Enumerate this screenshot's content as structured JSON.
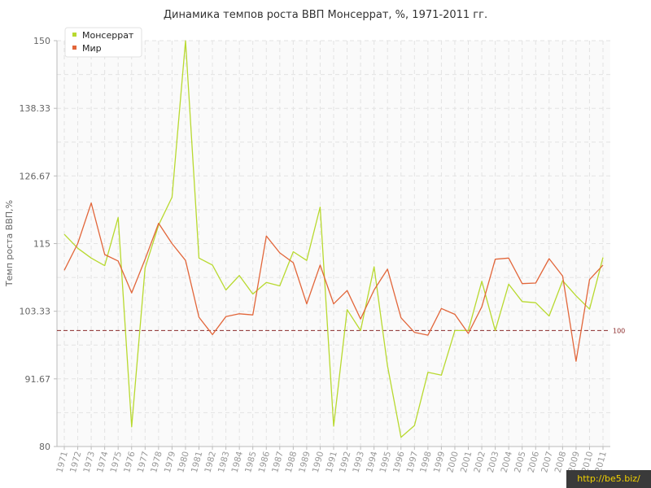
{
  "colors": {
    "monserrat": "#b8d92f",
    "world": "#e2663a",
    "reference": "#8b2a2a",
    "grid": "#e3e3e3",
    "axis": "#bbbbbb"
  },
  "watermark": "http://be5.biz/",
  "chart_data": {
    "type": "line",
    "title": "Динамика темпов роста ВВП Монсеррат, %, 1971-2011 гг.",
    "xlabel": "",
    "ylabel": "Темп роста ВВП,%",
    "ylim": [
      80,
      150
    ],
    "yticks": [
      "80",
      "91.67",
      "103.33",
      "115",
      "126.67",
      "138.33",
      "150"
    ],
    "ytick_values": [
      80,
      91.67,
      103.33,
      115,
      126.67,
      138.33,
      150
    ],
    "x": [
      "1971",
      "1972",
      "1973",
      "1974",
      "1975",
      "1976",
      "1977",
      "1978",
      "1979",
      "1980",
      "1981",
      "1982",
      "1983",
      "1984",
      "1985",
      "1986",
      "1987",
      "1988",
      "1989",
      "1990",
      "1991",
      "1992",
      "1993",
      "1994",
      "1995",
      "1996",
      "1997",
      "1998",
      "1999",
      "2000",
      "2001",
      "2002",
      "2003",
      "2004",
      "2005",
      "2006",
      "2007",
      "2008",
      "2009",
      "2010",
      "2011"
    ],
    "grid": true,
    "legend_position": "top-left",
    "reference_line": {
      "value": 100,
      "label": "100"
    },
    "series": [
      {
        "name": "Монсеррат",
        "color_key": "monserrat",
        "values": [
          116.6,
          114.2,
          112.5,
          111.2,
          119.5,
          83.4,
          110.8,
          118.2,
          123.0,
          150.0,
          112.5,
          111.3,
          107.0,
          109.5,
          106.3,
          108.3,
          107.7,
          113.6,
          112.1,
          121.3,
          83.5,
          103.6,
          100.0,
          111.0,
          93.9,
          81.6,
          83.6,
          92.8,
          92.3,
          100.0,
          100.0,
          108.5,
          100.0,
          108.0,
          105.0,
          104.8,
          102.5,
          108.6,
          106.0,
          103.7,
          112.6
        ]
      },
      {
        "name": "Мир",
        "color_key": "world",
        "values": [
          110.4,
          115.0,
          122.0,
          113.1,
          112.0,
          106.5,
          112.3,
          118.5,
          115.0,
          112.1,
          102.3,
          99.3,
          102.4,
          102.9,
          102.7,
          116.3,
          113.4,
          111.7,
          104.6,
          111.3,
          104.6,
          106.9,
          102.0,
          107.0,
          110.6,
          102.2,
          99.7,
          99.2,
          103.8,
          102.8,
          99.5,
          104.1,
          112.3,
          112.5,
          108.1,
          108.2,
          112.4,
          109.4,
          94.7,
          108.8,
          111.3
        ]
      }
    ]
  }
}
